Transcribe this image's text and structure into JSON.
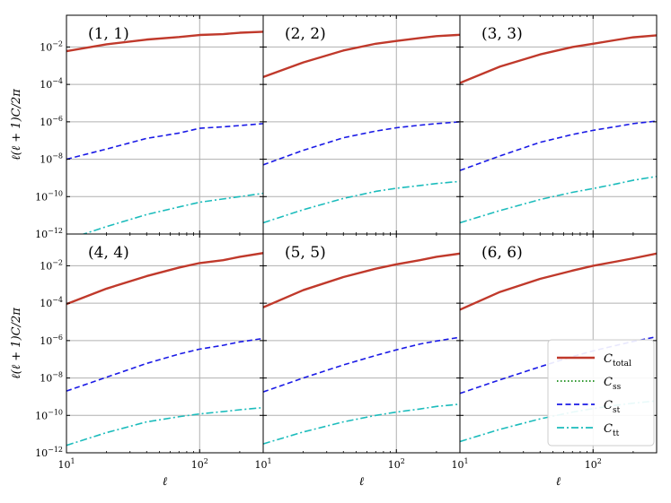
{
  "chart_data": {
    "type": "line",
    "layout": "2x3 grid, shared axes",
    "xscale": "log",
    "yscale": "log",
    "xlim": [
      10,
      300
    ],
    "ylim": [
      1e-12,
      0.5
    ],
    "grid": true,
    "xlabel": "ℓ",
    "ylabel": "ℓ(ℓ + 1)C/2π",
    "x_ticks": [
      10,
      100
    ],
    "x_tick_labels": [
      [
        "10",
        "1"
      ],
      [
        "10",
        "2"
      ]
    ],
    "y_ticks": [
      1e-12,
      1e-10,
      1e-08,
      1e-06,
      0.0001,
      0.01
    ],
    "y_tick_labels": [
      [
        "10",
        "−12"
      ],
      [
        "10",
        "−10"
      ],
      [
        "10",
        "−8"
      ],
      [
        "10",
        "−6"
      ],
      [
        "10",
        "−4"
      ],
      [
        "10",
        "−2"
      ]
    ],
    "legend": {
      "location": "lower-right of panel (6, 6)",
      "entries": [
        {
          "key": "total",
          "base": "C",
          "sub": "total",
          "color": "#c0392b",
          "style": "solid"
        },
        {
          "key": "ss",
          "base": "C",
          "sub": "ss",
          "color": "#138a13",
          "style": "dotted"
        },
        {
          "key": "st",
          "base": "C",
          "sub": "st",
          "color": "#1a1ae6",
          "style": "dashed"
        },
        {
          "key": "tt",
          "base": "C",
          "sub": "tt",
          "color": "#1cbcbc",
          "style": "dashdot"
        }
      ]
    },
    "panels": [
      {
        "label": "(1, 1)",
        "series": [
          {
            "key": "total",
            "points": [
              [
                10,
                0.006
              ],
              [
                20,
                0.014
              ],
              [
                40,
                0.025
              ],
              [
                70,
                0.034
              ],
              [
                100,
                0.044
              ],
              [
                150,
                0.049
              ],
              [
                200,
                0.058
              ],
              [
                300,
                0.065
              ]
            ]
          },
          {
            "key": "ss",
            "points": [
              [
                10,
                0.006
              ],
              [
                20,
                0.014
              ],
              [
                40,
                0.025
              ],
              [
                70,
                0.034
              ],
              [
                100,
                0.044
              ],
              [
                150,
                0.049
              ],
              [
                200,
                0.058
              ],
              [
                300,
                0.065
              ]
            ]
          },
          {
            "key": "st",
            "points": [
              [
                10,
                1e-08
              ],
              [
                20,
                3.5e-08
              ],
              [
                40,
                1.3e-07
              ],
              [
                70,
                2.5e-07
              ],
              [
                100,
                4.5e-07
              ],
              [
                150,
                5.4e-07
              ],
              [
                200,
                6.3e-07
              ],
              [
                300,
                8e-07
              ]
            ]
          },
          {
            "key": "tt",
            "points": [
              [
                10,
                5e-13
              ],
              [
                20,
                2.5e-12
              ],
              [
                40,
                1.1e-11
              ],
              [
                70,
                2.8e-11
              ],
              [
                100,
                5e-11
              ],
              [
                150,
                7.5e-11
              ],
              [
                200,
                1e-10
              ],
              [
                300,
                1.5e-10
              ]
            ]
          }
        ]
      },
      {
        "label": "(2, 2)",
        "series": [
          {
            "key": "total",
            "points": [
              [
                10,
                0.00025
              ],
              [
                20,
                0.0015
              ],
              [
                40,
                0.0065
              ],
              [
                70,
                0.015
              ],
              [
                100,
                0.021
              ],
              [
                150,
                0.03
              ],
              [
                200,
                0.038
              ],
              [
                300,
                0.045
              ]
            ]
          },
          {
            "key": "ss",
            "points": [
              [
                10,
                0.00025
              ],
              [
                20,
                0.0015
              ],
              [
                40,
                0.0065
              ],
              [
                70,
                0.015
              ],
              [
                100,
                0.021
              ],
              [
                150,
                0.03
              ],
              [
                200,
                0.038
              ],
              [
                300,
                0.045
              ]
            ]
          },
          {
            "key": "st",
            "points": [
              [
                10,
                5e-09
              ],
              [
                20,
                3e-08
              ],
              [
                40,
                1.4e-07
              ],
              [
                70,
                3.2e-07
              ],
              [
                100,
                4.8e-07
              ],
              [
                150,
                6.6e-07
              ],
              [
                200,
                8e-07
              ],
              [
                300,
                1e-06
              ]
            ]
          },
          {
            "key": "tt",
            "points": [
              [
                10,
                4e-12
              ],
              [
                20,
                2e-11
              ],
              [
                40,
                8e-11
              ],
              [
                70,
                1.9e-10
              ],
              [
                100,
                2.8e-10
              ],
              [
                150,
                3.9e-10
              ],
              [
                200,
                5e-10
              ],
              [
                300,
                6.5e-10
              ]
            ]
          }
        ]
      },
      {
        "label": "(3, 3)",
        "series": [
          {
            "key": "total",
            "points": [
              [
                10,
                0.00012
              ],
              [
                20,
                0.0009
              ],
              [
                40,
                0.004
              ],
              [
                70,
                0.01
              ],
              [
                100,
                0.015
              ],
              [
                150,
                0.024
              ],
              [
                200,
                0.033
              ],
              [
                300,
                0.042
              ]
            ]
          },
          {
            "key": "ss",
            "points": [
              [
                10,
                0.00012
              ],
              [
                20,
                0.0009
              ],
              [
                40,
                0.004
              ],
              [
                70,
                0.01
              ],
              [
                100,
                0.015
              ],
              [
                150,
                0.024
              ],
              [
                200,
                0.033
              ],
              [
                300,
                0.042
              ]
            ]
          },
          {
            "key": "st",
            "points": [
              [
                10,
                2.5e-09
              ],
              [
                20,
                1.5e-08
              ],
              [
                40,
                8e-08
              ],
              [
                70,
                2.1e-07
              ],
              [
                100,
                3.5e-07
              ],
              [
                150,
                5.6e-07
              ],
              [
                200,
                8e-07
              ],
              [
                300,
                1.1e-06
              ]
            ]
          },
          {
            "key": "tt",
            "points": [
              [
                10,
                4e-12
              ],
              [
                20,
                1.8e-11
              ],
              [
                40,
                7e-11
              ],
              [
                70,
                1.7e-10
              ],
              [
                100,
                2.7e-10
              ],
              [
                150,
                4.8e-10
              ],
              [
                200,
                7.5e-10
              ],
              [
                300,
                1.2e-09
              ]
            ]
          }
        ]
      },
      {
        "label": "(4, 4)",
        "series": [
          {
            "key": "total",
            "points": [
              [
                10,
                9e-05
              ],
              [
                20,
                0.0006
              ],
              [
                40,
                0.0028
              ],
              [
                70,
                0.008
              ],
              [
                100,
                0.014
              ],
              [
                150,
                0.02
              ],
              [
                200,
                0.03
              ],
              [
                300,
                0.048
              ]
            ]
          },
          {
            "key": "ss",
            "points": [
              [
                10,
                9e-05
              ],
              [
                20,
                0.0006
              ],
              [
                40,
                0.0028
              ],
              [
                70,
                0.008
              ],
              [
                100,
                0.014
              ],
              [
                150,
                0.02
              ],
              [
                200,
                0.03
              ],
              [
                300,
                0.048
              ]
            ]
          },
          {
            "key": "st",
            "points": [
              [
                10,
                2e-09
              ],
              [
                20,
                1.1e-08
              ],
              [
                40,
                6e-08
              ],
              [
                70,
                1.9e-07
              ],
              [
                100,
                3.5e-07
              ],
              [
                150,
                5.6e-07
              ],
              [
                200,
                8.5e-07
              ],
              [
                300,
                1.3e-06
              ]
            ]
          },
          {
            "key": "tt",
            "points": [
              [
                10,
                2.5e-12
              ],
              [
                20,
                1.2e-11
              ],
              [
                40,
                4.5e-11
              ],
              [
                70,
                8.5e-11
              ],
              [
                100,
                1.2e-10
              ],
              [
                150,
                1.6e-10
              ],
              [
                200,
                2e-10
              ],
              [
                300,
                2.6e-10
              ]
            ]
          }
        ]
      },
      {
        "label": "(5, 5)",
        "series": [
          {
            "key": "total",
            "points": [
              [
                10,
                6e-05
              ],
              [
                20,
                0.0005
              ],
              [
                40,
                0.0025
              ],
              [
                70,
                0.007
              ],
              [
                100,
                0.012
              ],
              [
                150,
                0.02
              ],
              [
                200,
                0.03
              ],
              [
                300,
                0.045
              ]
            ]
          },
          {
            "key": "ss",
            "points": [
              [
                10,
                6e-05
              ],
              [
                20,
                0.0005
              ],
              [
                40,
                0.0025
              ],
              [
                70,
                0.007
              ],
              [
                100,
                0.012
              ],
              [
                150,
                0.02
              ],
              [
                200,
                0.03
              ],
              [
                300,
                0.045
              ]
            ]
          },
          {
            "key": "st",
            "points": [
              [
                10,
                1.8e-09
              ],
              [
                20,
                1e-08
              ],
              [
                40,
                5e-08
              ],
              [
                70,
                1.6e-07
              ],
              [
                100,
                3.2e-07
              ],
              [
                150,
                6.5e-07
              ],
              [
                200,
                9.5e-07
              ],
              [
                300,
                1.5e-06
              ]
            ]
          },
          {
            "key": "tt",
            "points": [
              [
                10,
                3e-12
              ],
              [
                20,
                1.3e-11
              ],
              [
                40,
                4.5e-11
              ],
              [
                70,
                1e-10
              ],
              [
                100,
                1.5e-10
              ],
              [
                150,
                2.2e-10
              ],
              [
                200,
                3e-10
              ],
              [
                300,
                4e-10
              ]
            ]
          }
        ]
      },
      {
        "label": "(6, 6)",
        "series": [
          {
            "key": "total",
            "points": [
              [
                10,
                4.5e-05
              ],
              [
                20,
                0.0004
              ],
              [
                40,
                0.002
              ],
              [
                70,
                0.0055
              ],
              [
                100,
                0.01
              ],
              [
                150,
                0.017
              ],
              [
                200,
                0.025
              ],
              [
                300,
                0.045
              ]
            ]
          },
          {
            "key": "ss",
            "points": [
              [
                10,
                4.5e-05
              ],
              [
                20,
                0.0004
              ],
              [
                40,
                0.002
              ],
              [
                70,
                0.0055
              ],
              [
                100,
                0.01
              ],
              [
                150,
                0.017
              ],
              [
                200,
                0.025
              ],
              [
                300,
                0.045
              ]
            ]
          },
          {
            "key": "st",
            "points": [
              [
                10,
                1.5e-09
              ],
              [
                20,
                8e-09
              ],
              [
                40,
                4e-08
              ],
              [
                70,
                1.4e-07
              ],
              [
                100,
                2.8e-07
              ],
              [
                150,
                5.6e-07
              ],
              [
                200,
                9e-07
              ],
              [
                300,
                1.6e-06
              ]
            ]
          },
          {
            "key": "tt",
            "points": [
              [
                10,
                4e-12
              ],
              [
                20,
                1.8e-11
              ],
              [
                40,
                6.5e-11
              ],
              [
                70,
                1.5e-10
              ],
              [
                100,
                2.3e-10
              ],
              [
                150,
                3.5e-10
              ],
              [
                200,
                4.5e-10
              ],
              [
                300,
                6e-10
              ]
            ]
          }
        ]
      }
    ]
  }
}
